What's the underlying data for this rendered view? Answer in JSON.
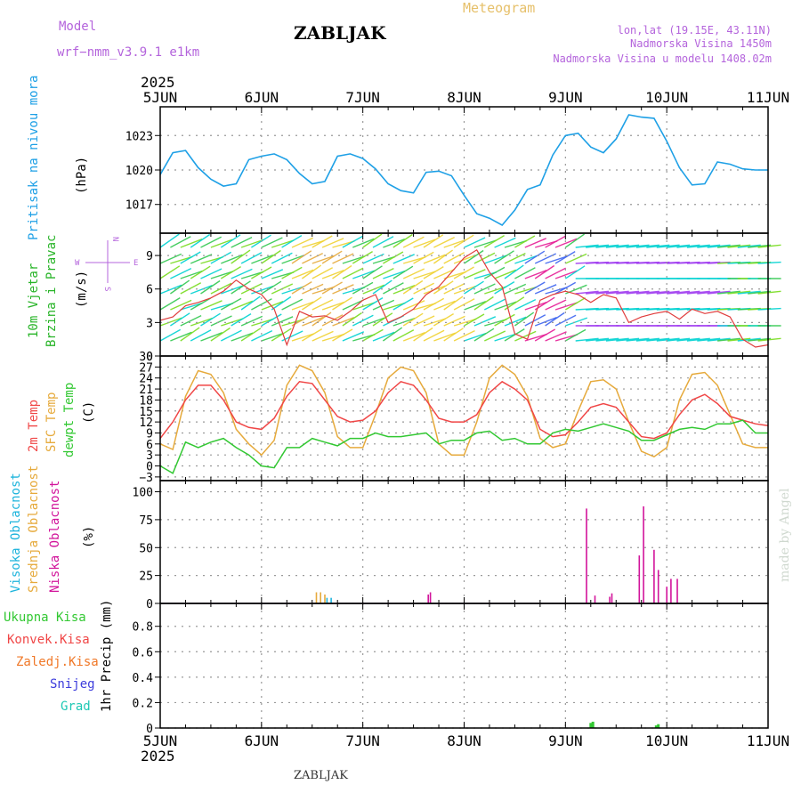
{
  "header": {
    "model_label": "Model",
    "model_name": "wrf−nmm_v3.9.1  e1km",
    "station_title": "ZABLJAK",
    "meteogram_label": "Meteogram",
    "lonlat": "lon,lat (19.15E, 43.11N)",
    "altitude": "Nadmorska Visina 1450m",
    "model_altitude": "Nadmorska Visina u modelu 1408.02m",
    "footer_station": "ZABLJAK",
    "credit": "made by Angel",
    "year_top": "2025",
    "year_bottom": "2025"
  },
  "colors": {
    "pressure": "#1ea0e6",
    "temp2m": "#f04646",
    "sfc_temp": "#e6aa3c",
    "dewpt": "#32c832",
    "high_cloud": "#1eb4dc",
    "mid_cloud": "#e6aa3c",
    "low_cloud": "#d2149b",
    "total_precip": "#32c832",
    "conv_precip": "#f04646",
    "frozen_precip": "#f07828",
    "snow": "#3c3cdc",
    "hail": "#1ec8b4",
    "model_label": "#b464dc"
  },
  "time_axis": {
    "labels": [
      "5JUN",
      "6JUN",
      "7JUN",
      "8JUN",
      "9JUN",
      "10JUN",
      "11JUN"
    ]
  },
  "panels": {
    "pressure": {
      "labels": [
        "Pritisak na nivou mora"
      ],
      "unit": "(hPa)",
      "ticks": [
        1017,
        1020,
        1023
      ]
    },
    "wind": {
      "labels": [
        "10m Vjetar",
        "Brzina i Pravac"
      ],
      "unit": "(m/s)",
      "ticks": [
        0,
        3,
        6,
        9
      ],
      "compass_n": "N",
      "compass_w": "W",
      "compass_e": "E",
      "compass_s": "S"
    },
    "temperature": {
      "labels": [
        "2m Temp",
        "SFC Temp",
        "dewpt Temp"
      ],
      "unit": "(C)",
      "ticks": [
        -3,
        0,
        3,
        6,
        9,
        12,
        15,
        18,
        21,
        24,
        27,
        30
      ]
    },
    "cloud": {
      "labels": [
        "Visoka Oblacnost",
        "Srednja Oblacnost",
        "Niska Oblacnost"
      ],
      "unit": "(%)",
      "ticks": [
        0,
        25,
        50,
        75,
        100
      ]
    },
    "precip": {
      "legend": [
        "Ukupna Kisa",
        "Konvek.Kisa",
        "Zaledj.Kisa",
        "Snijeg",
        "Grad"
      ],
      "unit": "1hr Precip (mm)",
      "ticks": [
        0,
        0.2,
        0.4,
        0.6,
        0.8
      ]
    }
  },
  "chart_data": [
    {
      "type": "line",
      "title": "Pritisak na nivou mora",
      "ylabel": "(hPa)",
      "ylim": [
        1014.5,
        1025.5
      ],
      "x": [
        0,
        3,
        6,
        9,
        12,
        15,
        18,
        21,
        24,
        27,
        30,
        33,
        36,
        39,
        42,
        45,
        48,
        51,
        54,
        57,
        60,
        63,
        66,
        69,
        72,
        75,
        78,
        81,
        84,
        87,
        90,
        93,
        96,
        99,
        102,
        105,
        108,
        111,
        114,
        117,
        120,
        123,
        126,
        129,
        132,
        135,
        138,
        141,
        144
      ],
      "series": [
        {
          "name": "Pritisak na nivou mora",
          "values": [
            1019.6,
            1021.5,
            1021.7,
            1020.2,
            1019.2,
            1018.6,
            1018.8,
            1020.9,
            1021.2,
            1021.4,
            1020.9,
            1019.7,
            1018.8,
            1019.0,
            1021.2,
            1021.4,
            1021.0,
            1020.1,
            1018.8,
            1018.2,
            1018.0,
            1019.8,
            1019.9,
            1019.5,
            1017.8,
            1016.2,
            1015.8,
            1015.2,
            1016.5,
            1018.3,
            1018.7,
            1021.3,
            1023.0,
            1023.2,
            1022.0,
            1021.5,
            1022.7,
            1024.8,
            1024.6,
            1024.5,
            1022.5,
            1020.2,
            1018.7,
            1018.8,
            1020.7,
            1020.5,
            1020.1,
            1020.0,
            1020.0
          ]
        }
      ]
    },
    {
      "type": "line",
      "title": "10m Vjetar Brzina i Pravac",
      "ylabel": "(m/s)",
      "ylim": [
        0,
        11
      ],
      "x": [
        0,
        3,
        6,
        9,
        12,
        15,
        18,
        21,
        24,
        27,
        30,
        33,
        36,
        39,
        42,
        45,
        48,
        51,
        54,
        57,
        60,
        63,
        66,
        69,
        72,
        75,
        78,
        81,
        84,
        87,
        90,
        93,
        96,
        99,
        102,
        105,
        108,
        111,
        114,
        117,
        120,
        123,
        126,
        129,
        132,
        135,
        138,
        141,
        144
      ],
      "series": [
        {
          "name": "10m Vjetar",
          "values": [
            3.2,
            3.5,
            4.5,
            4.8,
            5.2,
            5.8,
            6.8,
            6.0,
            5.5,
            4.2,
            1.0,
            4.0,
            3.5,
            3.6,
            3.2,
            4.0,
            5.0,
            5.5,
            3.0,
            3.5,
            4.2,
            5.5,
            6.2,
            7.5,
            8.8,
            9.5,
            7.5,
            6.2,
            2.0,
            1.5,
            5.0,
            5.5,
            5.8,
            5.5,
            4.8,
            5.5,
            5.2,
            3.0,
            3.5,
            3.8,
            4.0,
            3.3,
            4.2,
            3.8,
            4.0,
            3.5,
            1.5,
            0.8,
            1.0
          ]
        }
      ]
    },
    {
      "type": "line",
      "title": "2m Temp / SFC Temp / dewpt Temp",
      "ylabel": "(C)",
      "ylim": [
        -4,
        30
      ],
      "x": [
        0,
        3,
        6,
        9,
        12,
        15,
        18,
        21,
        24,
        27,
        30,
        33,
        36,
        39,
        42,
        45,
        48,
        51,
        54,
        57,
        60,
        63,
        66,
        69,
        72,
        75,
        78,
        81,
        84,
        87,
        90,
        93,
        96,
        99,
        102,
        105,
        108,
        111,
        114,
        117,
        120,
        123,
        126,
        129,
        132,
        135,
        138,
        141,
        144
      ],
      "series": [
        {
          "name": "2m Temp",
          "values": [
            7.5,
            12.0,
            18.0,
            22.0,
            22.0,
            18.0,
            12.0,
            10.5,
            10.0,
            13.0,
            19.0,
            23.0,
            22.5,
            18.0,
            13.5,
            12.0,
            12.5,
            15.0,
            20.0,
            23.0,
            22.0,
            18.0,
            13.0,
            12.0,
            12.0,
            14.0,
            20.0,
            23.0,
            21.0,
            18.0,
            10.0,
            8.0,
            8.5,
            12.0,
            16.0,
            17.0,
            16.0,
            12.0,
            8.0,
            7.5,
            9.0,
            14.0,
            18.0,
            19.5,
            17.0,
            13.5,
            12.5,
            11.5,
            11.0
          ]
        },
        {
          "name": "SFC Temp",
          "values": [
            6.0,
            4.5,
            19.0,
            26.0,
            25.0,
            20.0,
            10.0,
            6.0,
            3.0,
            7.0,
            22.0,
            27.5,
            26.0,
            20.0,
            8.0,
            5.0,
            5.0,
            14.0,
            24.0,
            27.0,
            26.0,
            20.0,
            6.0,
            3.0,
            3.0,
            12.0,
            24.0,
            27.5,
            25.0,
            19.0,
            7.5,
            5.0,
            6.0,
            15.0,
            23.0,
            23.5,
            21.0,
            12.0,
            4.0,
            2.5,
            5.0,
            18.0,
            25.0,
            25.5,
            22.0,
            14.0,
            6.0,
            5.0,
            5.0
          ]
        },
        {
          "name": "dewpt Temp",
          "values": [
            0.0,
            -2.0,
            6.5,
            5.0,
            6.5,
            7.5,
            5.0,
            3.0,
            0.0,
            -0.5,
            5.0,
            5.0,
            7.5,
            6.5,
            5.5,
            7.5,
            7.5,
            9.0,
            8.0,
            8.0,
            8.5,
            9.0,
            6.0,
            7.0,
            7.0,
            9.0,
            9.5,
            7.0,
            7.5,
            6.0,
            6.0,
            9.0,
            10.0,
            9.5,
            10.5,
            11.5,
            10.5,
            9.5,
            7.0,
            7.0,
            8.5,
            10.0,
            10.5,
            10.0,
            11.5,
            11.5,
            12.5,
            9.0,
            9.0
          ]
        }
      ]
    },
    {
      "type": "bar",
      "title": "Visoka / Srednja / Niska Oblacnost",
      "ylabel": "(%)",
      "ylim": [
        0,
        110
      ],
      "series": [
        {
          "name": "Visoka Oblacnost",
          "x": [
            39.5,
            40.5
          ],
          "values": [
            5,
            5
          ]
        },
        {
          "name": "Srednja Oblacnost",
          "x": [
            37.0,
            38.0,
            39.0
          ],
          "values": [
            10,
            10,
            8
          ]
        },
        {
          "name": "Niska Oblacnost",
          "x": [
            63.5,
            64.0,
            101.0,
            103.0,
            106.5,
            107.0,
            113.5,
            114.5,
            117.0,
            118.0,
            120.0,
            121.0,
            122.5
          ],
          "values": [
            8,
            10,
            85,
            7,
            6,
            9,
            43,
            87,
            48,
            30,
            15,
            22,
            22
          ]
        }
      ]
    },
    {
      "type": "bar",
      "title": "1hr Precip",
      "ylabel": "1hr Precip (mm)",
      "ylim": [
        0,
        0.98
      ],
      "series": [
        {
          "name": "Ukupna Kisa",
          "x": [
            102.0,
            102.5,
            117.5,
            118.0
          ],
          "values": [
            0.04,
            0.05,
            0.02,
            0.03
          ]
        }
      ]
    }
  ]
}
